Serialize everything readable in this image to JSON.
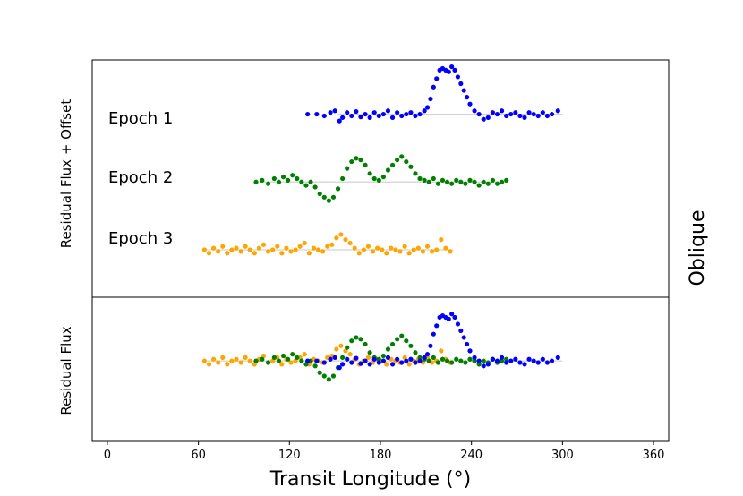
{
  "chart_data": {
    "type": "scatter",
    "title": "",
    "side_label": "Oblique",
    "xlabel": "Transit Longitude (°)",
    "xlim": [
      -10,
      370
    ],
    "xticks": [
      0,
      60,
      120,
      180,
      240,
      300,
      360
    ],
    "grid": false,
    "colors": {
      "Epoch 1": "#0000ff",
      "Epoch 2": "#008000",
      "Epoch 3": "#ffa500"
    },
    "panels": [
      {
        "id": "offset",
        "ylabel": "Residual Flux + Offset",
        "ylim": [
          -3.4,
          3.6
        ],
        "series": [
          {
            "name": "Epoch 1",
            "offset": 2,
            "baseline_x": [
              152,
              300
            ],
            "x": [
              132,
              138,
              143,
              147,
              150,
              153,
              155,
              158,
              161,
              164,
              167,
              170,
              173,
              176,
              179,
              182,
              185,
              188,
              191,
              194,
              197,
              200,
              203,
              206,
              209,
              211,
              213,
              215,
              217,
              219,
              221,
              223,
              225,
              227,
              229,
              231,
              233,
              235,
              237,
              239,
              242,
              245,
              248,
              251,
              254,
              257,
              260,
              263,
              266,
              269,
              272,
              275,
              278,
              281,
              284,
              287,
              290,
              293,
              297
            ],
            "y": [
              0.0,
              0.0,
              -0.05,
              0.05,
              0.1,
              -0.2,
              -0.1,
              0.05,
              -0.05,
              0.08,
              -0.08,
              0.0,
              -0.1,
              0.05,
              -0.05,
              0.0,
              0.1,
              -0.1,
              0.05,
              -0.05,
              0.0,
              0.05,
              -0.05,
              0.0,
              0.1,
              0.2,
              0.45,
              0.8,
              1.05,
              1.3,
              1.35,
              1.3,
              1.25,
              1.4,
              1.3,
              1.1,
              0.9,
              0.7,
              0.5,
              0.3,
              0.1,
              0.0,
              -0.15,
              -0.1,
              0.05,
              0.0,
              0.1,
              -0.05,
              0.0,
              0.05,
              -0.05,
              -0.1,
              0.05,
              0.0,
              -0.05,
              0.05,
              -0.05,
              0.0,
              0.1
            ]
          },
          {
            "name": "Epoch 2",
            "offset": 0,
            "baseline_x": [
              100,
              263
            ],
            "x": [
              98,
              102,
              106,
              110,
              113,
              116,
              119,
              122,
              125,
              128,
              131,
              134,
              137,
              140,
              143,
              146,
              149,
              152,
              155,
              158,
              161,
              164,
              167,
              170,
              173,
              176,
              179,
              182,
              185,
              188,
              191,
              194,
              197,
              200,
              203,
              206,
              209,
              212,
              215,
              218,
              221,
              224,
              227,
              230,
              233,
              236,
              239,
              242,
              245,
              248,
              251,
              254,
              257,
              260,
              263
            ],
            "y": [
              0.0,
              0.05,
              -0.05,
              0.1,
              0.0,
              0.15,
              0.05,
              0.2,
              0.1,
              0.0,
              -0.1,
              0.0,
              -0.15,
              -0.35,
              -0.45,
              -0.55,
              -0.45,
              -0.2,
              0.1,
              0.4,
              0.6,
              0.7,
              0.65,
              0.5,
              0.25,
              0.1,
              0.05,
              0.15,
              0.35,
              0.5,
              0.65,
              0.75,
              0.6,
              0.45,
              0.25,
              0.1,
              0.05,
              0.0,
              0.1,
              -0.05,
              0.05,
              0.0,
              -0.05,
              0.05,
              0.0,
              -0.05,
              0.05,
              0.0,
              -0.1,
              0.0,
              -0.05,
              0.05,
              -0.05,
              0.0,
              0.05
            ]
          },
          {
            "name": "Epoch 3",
            "offset": -2,
            "baseline_x": [
              63,
              228
            ],
            "x": [
              64,
              67,
              70,
              73,
              76,
              79,
              82,
              85,
              88,
              91,
              94,
              97,
              100,
              103,
              106,
              109,
              112,
              115,
              118,
              121,
              124,
              127,
              130,
              133,
              136,
              139,
              142,
              145,
              148,
              151,
              154,
              157,
              160,
              163,
              166,
              169,
              172,
              175,
              178,
              181,
              184,
              187,
              190,
              193,
              196,
              199,
              202,
              205,
              208,
              211,
              214,
              217,
              220,
              223,
              226
            ],
            "y": [
              0.0,
              -0.1,
              0.05,
              -0.05,
              0.1,
              -0.1,
              0.0,
              0.05,
              -0.05,
              0.1,
              0.0,
              -0.1,
              0.05,
              0.15,
              -0.05,
              0.0,
              0.1,
              -0.1,
              0.05,
              -0.05,
              0.0,
              0.1,
              0.2,
              -0.1,
              0.05,
              0.0,
              -0.05,
              0.1,
              0.15,
              0.35,
              0.45,
              0.3,
              0.2,
              0.05,
              -0.1,
              0.0,
              0.1,
              -0.05,
              0.05,
              0.0,
              -0.1,
              0.05,
              0.0,
              -0.05,
              0.1,
              -0.1,
              0.0,
              0.05,
              -0.05,
              0.1,
              -0.05,
              0.0,
              0.3,
              0.05,
              -0.05
            ]
          }
        ]
      },
      {
        "id": "residual",
        "ylabel": "Residual Flux",
        "ylim": [
          -2.4,
          1.9
        ],
        "series": [
          {
            "name": "Epoch 1",
            "same_as_offset_panel": true
          },
          {
            "name": "Epoch 2",
            "same_as_offset_panel": true
          },
          {
            "name": "Epoch 3",
            "same_as_offset_panel": true
          }
        ]
      }
    ]
  }
}
